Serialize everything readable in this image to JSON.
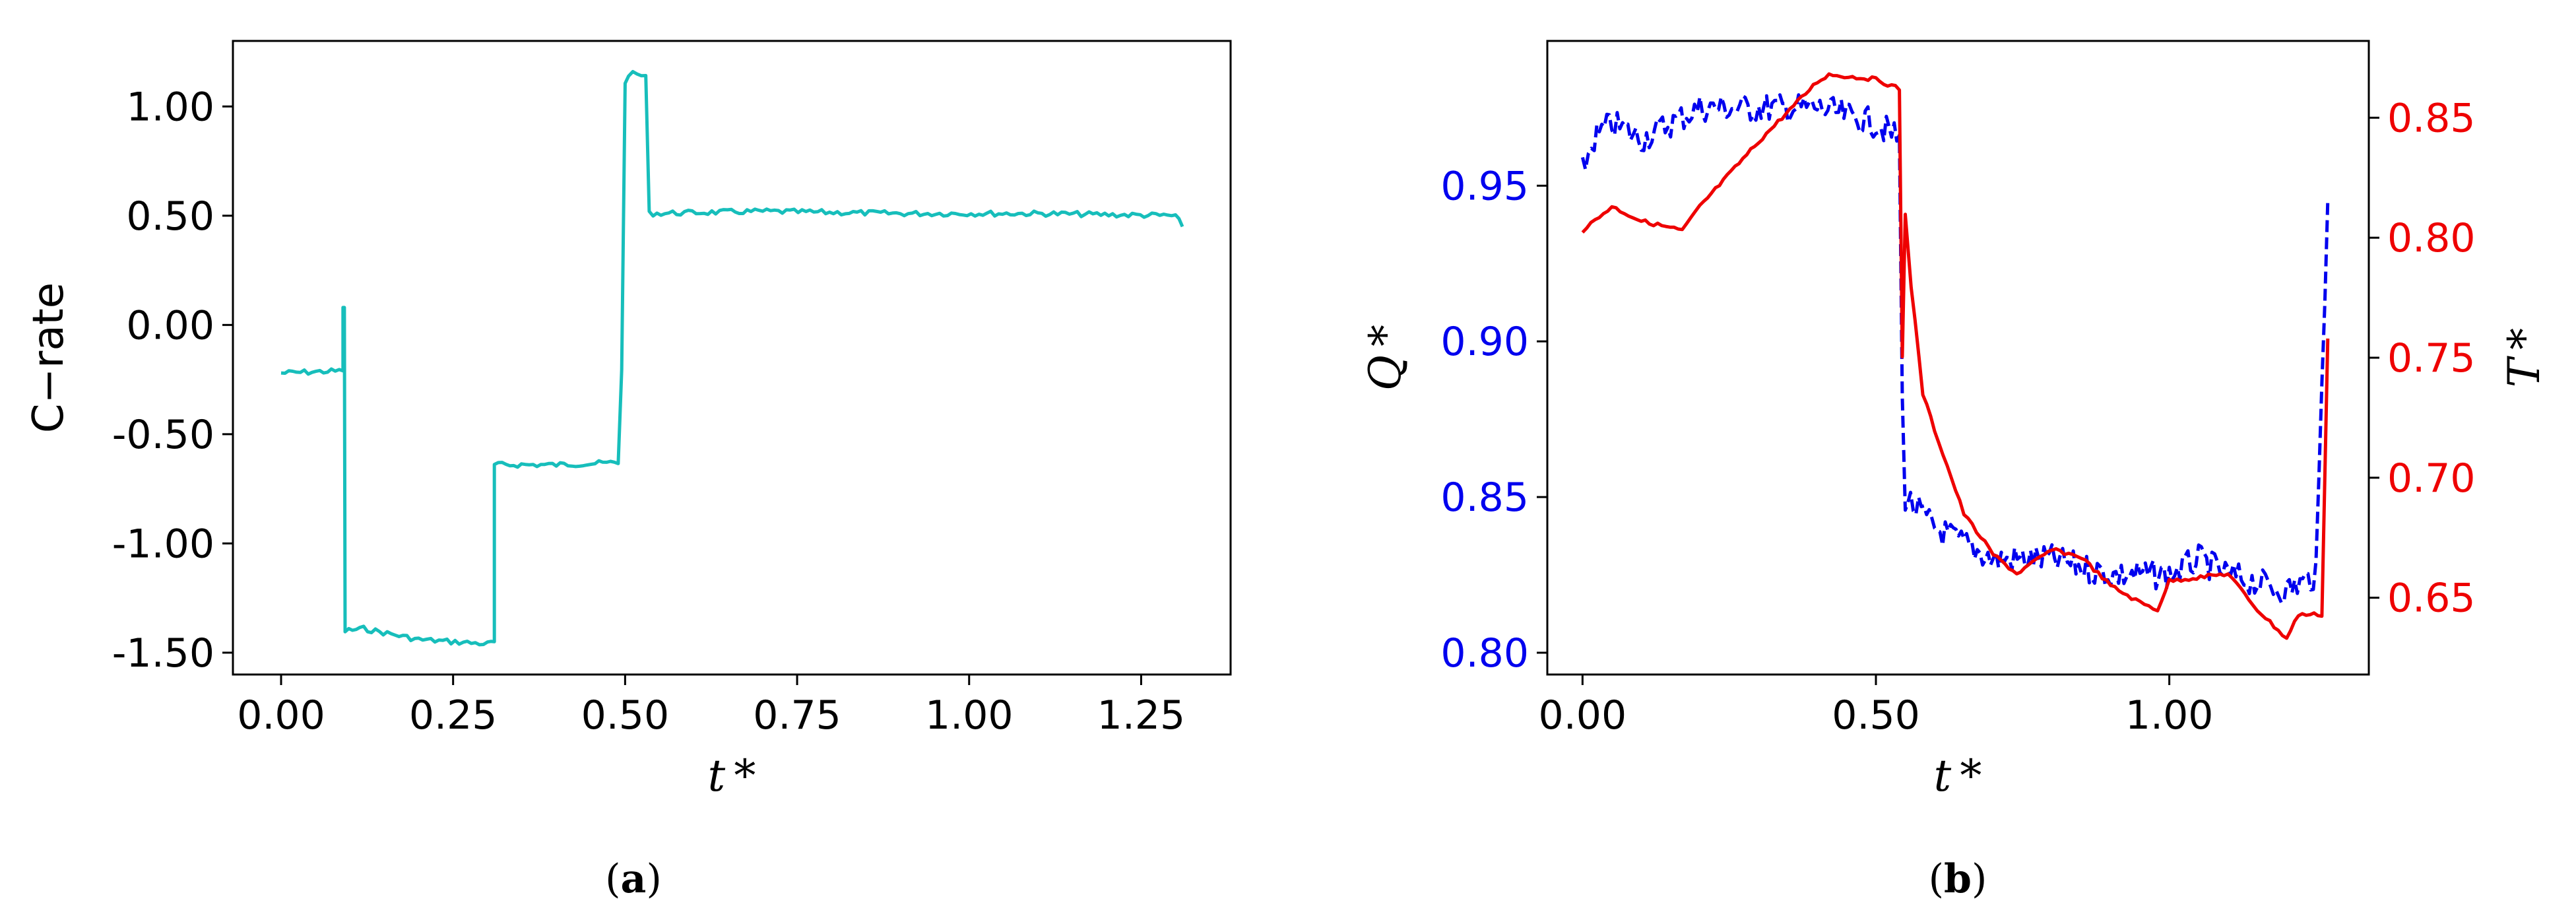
{
  "colors": {
    "crate": "#17bebb",
    "q": "#0000ee",
    "t": "#ee0000",
    "axis": "#000000"
  },
  "captions": [
    {
      "open": "(",
      "letter": "a",
      "close": ")"
    },
    {
      "open": "(",
      "letter": "b",
      "close": ")"
    }
  ],
  "chart_data": [
    {
      "type": "line",
      "xlabel": "t *",
      "ylabel": "C−rate",
      "xlim": [
        -0.07,
        1.38
      ],
      "ylim": [
        -1.6,
        1.3
      ],
      "xticks": [
        0,
        0.25,
        0.5,
        0.75,
        1.0,
        1.25
      ],
      "xtick_labels": [
        "0.00",
        "0.25",
        "0.50",
        "0.75",
        "1.00",
        "1.25"
      ],
      "yticks": [
        -1.5,
        -1.0,
        -0.5,
        0,
        0.5,
        1.0
      ],
      "ytick_labels": [
        "-1.50",
        "-1.00",
        "-0.50",
        "0.00",
        "0.50",
        "1.00"
      ],
      "series": [
        {
          "color": "#17bebb",
          "style": "solid",
          "points": [
            [
              0.0,
              -0.22
            ],
            [
              0.09,
              -0.21
            ],
            [
              0.09,
              0.08
            ],
            [
              0.092,
              0.08
            ],
            [
              0.093,
              -1.4
            ],
            [
              0.12,
              -1.39
            ],
            [
              0.2,
              -1.44
            ],
            [
              0.3,
              -1.46
            ],
            [
              0.31,
              -1.45
            ],
            [
              0.31,
              -0.64
            ],
            [
              0.4,
              -0.64
            ],
            [
              0.49,
              -0.63
            ],
            [
              0.495,
              -0.2
            ],
            [
              0.5,
              1.1
            ],
            [
              0.505,
              1.15
            ],
            [
              0.53,
              1.14
            ],
            [
              0.535,
              0.51
            ],
            [
              0.7,
              0.52
            ],
            [
              0.9,
              0.51
            ],
            [
              1.1,
              0.51
            ],
            [
              1.3,
              0.5
            ],
            [
              1.31,
              0.45
            ]
          ]
        }
      ]
    },
    {
      "type": "line",
      "xlabel": "t *",
      "ylabel_left": "Q *",
      "ylabel_right": "T *",
      "xlim": [
        -0.06,
        1.34
      ],
      "ylim_left": [
        0.793,
        0.9965
      ],
      "ylim_right": [
        0.618,
        0.882
      ],
      "xticks": [
        0,
        0.5,
        1.0
      ],
      "xtick_labels": [
        "0.00",
        "0.50",
        "1.00"
      ],
      "yticks_left": [
        0.8,
        0.85,
        0.9,
        0.95
      ],
      "ytick_labels_left": [
        "0.80",
        "0.85",
        "0.90",
        "0.95"
      ],
      "yticks_right": [
        0.65,
        0.7,
        0.75,
        0.8,
        0.85
      ],
      "ytick_labels_right": [
        "0.65",
        "0.70",
        "0.75",
        "0.80",
        "0.85"
      ],
      "series": [
        {
          "axis": "left",
          "color": "#0000ee",
          "style": "dashed",
          "points": [
            [
              0.0,
              0.955
            ],
            [
              0.02,
              0.965
            ],
            [
              0.05,
              0.97
            ],
            [
              0.1,
              0.965
            ],
            [
              0.15,
              0.97
            ],
            [
              0.2,
              0.975
            ],
            [
              0.3,
              0.975
            ],
            [
              0.4,
              0.975
            ],
            [
              0.5,
              0.97
            ],
            [
              0.54,
              0.965
            ],
            [
              0.545,
              0.88
            ],
            [
              0.55,
              0.85
            ],
            [
              0.6,
              0.84
            ],
            [
              0.65,
              0.835
            ],
            [
              0.7,
              0.83
            ],
            [
              0.8,
              0.83
            ],
            [
              0.9,
              0.825
            ],
            [
              1.0,
              0.825
            ],
            [
              1.05,
              0.83
            ],
            [
              1.1,
              0.825
            ],
            [
              1.2,
              0.82
            ],
            [
              1.25,
              0.825
            ],
            [
              1.27,
              0.945
            ]
          ]
        },
        {
          "axis": "right",
          "color": "#ee0000",
          "style": "solid",
          "points": [
            [
              0.0,
              0.803
            ],
            [
              0.05,
              0.813
            ],
            [
              0.1,
              0.807
            ],
            [
              0.17,
              0.803
            ],
            [
              0.2,
              0.813
            ],
            [
              0.3,
              0.84
            ],
            [
              0.4,
              0.865
            ],
            [
              0.42,
              0.868
            ],
            [
              0.5,
              0.866
            ],
            [
              0.54,
              0.862
            ],
            [
              0.545,
              0.75
            ],
            [
              0.55,
              0.81
            ],
            [
              0.56,
              0.78
            ],
            [
              0.58,
              0.735
            ],
            [
              0.6,
              0.72
            ],
            [
              0.65,
              0.685
            ],
            [
              0.7,
              0.668
            ],
            [
              0.74,
              0.66
            ],
            [
              0.8,
              0.67
            ],
            [
              0.85,
              0.667
            ],
            [
              0.9,
              0.655
            ],
            [
              0.95,
              0.648
            ],
            [
              0.98,
              0.645
            ],
            [
              1.0,
              0.657
            ],
            [
              1.1,
              0.66
            ],
            [
              1.15,
              0.645
            ],
            [
              1.2,
              0.633
            ],
            [
              1.22,
              0.643
            ],
            [
              1.26,
              0.643
            ],
            [
              1.27,
              0.758
            ]
          ]
        }
      ]
    }
  ]
}
